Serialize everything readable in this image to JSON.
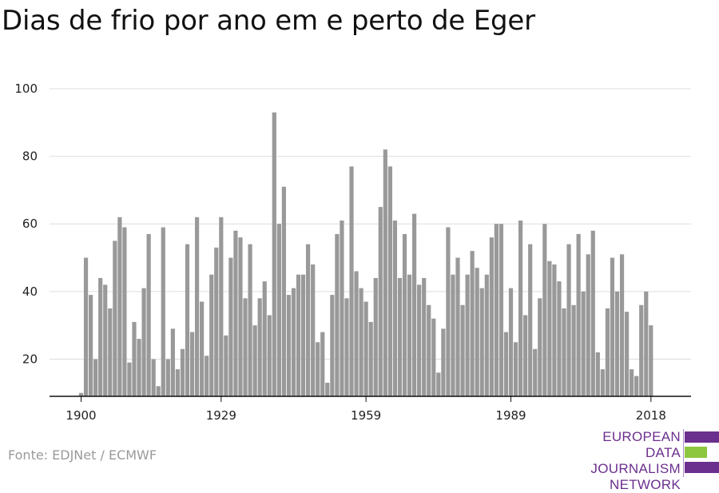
{
  "chart_data": {
    "type": "bar",
    "title": "Dias de frio por ano em e perto de Eger",
    "xlabel": "",
    "ylabel": "",
    "x_start": 1900,
    "values": [
      10,
      50,
      39,
      20,
      44,
      42,
      35,
      55,
      62,
      59,
      19,
      31,
      26,
      41,
      57,
      20,
      12,
      59,
      20,
      29,
      17,
      23,
      54,
      28,
      62,
      37,
      21,
      45,
      53,
      62,
      27,
      50,
      58,
      56,
      38,
      54,
      30,
      38,
      43,
      33,
      93,
      60,
      71,
      39,
      41,
      45,
      45,
      54,
      48,
      25,
      28,
      13,
      39,
      57,
      61,
      38,
      77,
      46,
      41,
      37,
      31,
      44,
      65,
      82,
      77,
      61,
      44,
      57,
      45,
      63,
      42,
      44,
      36,
      32,
      16,
      29,
      59,
      45,
      50,
      36,
      45,
      52,
      47,
      41,
      45,
      56,
      60,
      60,
      28,
      41,
      25,
      61,
      33,
      54,
      23,
      38,
      60,
      49,
      48,
      43,
      35,
      54,
      36,
      57,
      40,
      51,
      58,
      22,
      17,
      35,
      50,
      40,
      51,
      34,
      17,
      15,
      36,
      40,
      30
    ],
    "x_ticks": [
      "1900",
      "1929",
      "1959",
      "1989",
      "2018"
    ],
    "y_ticks": [
      "20",
      "40",
      "60",
      "80",
      "100"
    ],
    "ylim": [
      9,
      100
    ],
    "grid": true,
    "bar_color": "#999999",
    "grid_color": "#dddddd"
  },
  "footer": {
    "source": "Fonte: EDJNet / ECMWF"
  },
  "logo": {
    "lines": [
      "EUROPEAN",
      "DATA JOURNALISM",
      "NETWORK"
    ],
    "purple": "#6b2f8e",
    "green": "#8dc63f"
  }
}
